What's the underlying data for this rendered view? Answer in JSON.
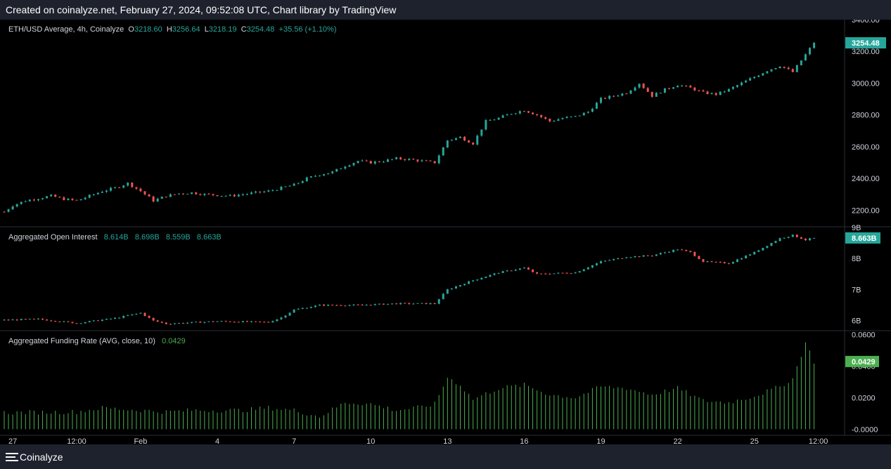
{
  "header": {
    "text": "Created on coinalyze.net, February 27, 2024, 09:52:08 UTC, Chart library by TradingView"
  },
  "footer": {
    "brand": "Coinalyze"
  },
  "colors": {
    "up": "#26a69a",
    "down": "#ef5350",
    "funding": "#4caf50",
    "background": "#000000",
    "text": "#d1d4dc"
  },
  "price_pane": {
    "label": "ETH/USD Average, 4h, Coinalyze",
    "o_label": "O",
    "o": "3218.60",
    "h_label": "H",
    "h": "3256.64",
    "l_label": "L",
    "l": "3218.19",
    "c_label": "C",
    "c": "3254.48",
    "change": "+35.56 (+1.10%)",
    "last_badge": "3254.48"
  },
  "oi_pane": {
    "label": "Aggregated Open Interest",
    "o": "8.614B",
    "h": "8.698B",
    "l": "8.559B",
    "c": "8.663B",
    "last_badge": "8.663B"
  },
  "funding_pane": {
    "label": "Aggregated Funding Rate (AVG, close, 10)",
    "value": "0.0429",
    "last_badge": "0.0429"
  },
  "chart_data": [
    {
      "type": "candlestick",
      "title": "ETH/USD Average, 4h, Coinalyze",
      "ylim": [
        2100,
        3400
      ],
      "y_ticks": [
        "2200.00",
        "2400.00",
        "2600.00",
        "2800.00",
        "3000.00",
        "3200.00",
        "3400.00"
      ],
      "y_tick_values": [
        2200,
        2400,
        2600,
        2800,
        3000,
        3200,
        3400
      ],
      "x_ticks": [
        "27",
        "12:00",
        "Feb",
        "4",
        "7",
        "10",
        "13",
        "16",
        "19",
        "22",
        "25",
        "12:00"
      ],
      "x_tick_dates": [
        "2024-01-27",
        "2024-01-29 12:00",
        "2024-02-01",
        "2024-02-04",
        "2024-02-07",
        "2024-02-10",
        "2024-02-13",
        "2024-02-16",
        "2024-02-19",
        "2024-02-22",
        "2024-02-25",
        "2024-02-27 12:00"
      ],
      "x_range": [
        "2024-01-26 16:00",
        "2024-02-28 12:00"
      ],
      "close_path": [
        [
          "2024-01-26 16:00",
          2190
        ],
        [
          "2024-01-27",
          2230
        ],
        [
          "2024-01-27 12:00",
          2260
        ],
        [
          "2024-01-28",
          2275
        ],
        [
          "2024-01-28 12:00",
          2290
        ],
        [
          "2024-01-29",
          2270
        ],
        [
          "2024-01-29 12:00",
          2260
        ],
        [
          "2024-01-30",
          2290
        ],
        [
          "2024-01-30 12:00",
          2320
        ],
        [
          "2024-01-31",
          2340
        ],
        [
          "2024-01-31 12:00",
          2370
        ],
        [
          "2024-02-01",
          2320
        ],
        [
          "2024-02-01 12:00",
          2260
        ],
        [
          "2024-02-02",
          2290
        ],
        [
          "2024-02-02 12:00",
          2305
        ],
        [
          "2024-02-03",
          2310
        ],
        [
          "2024-02-03 12:00",
          2300
        ],
        [
          "2024-02-04",
          2295
        ],
        [
          "2024-02-04 12:00",
          2290
        ],
        [
          "2024-02-05",
          2300
        ],
        [
          "2024-02-05 12:00",
          2310
        ],
        [
          "2024-02-06",
          2320
        ],
        [
          "2024-02-06 12:00",
          2340
        ],
        [
          "2024-02-07",
          2360
        ],
        [
          "2024-02-07 12:00",
          2400
        ],
        [
          "2024-02-08",
          2425
        ],
        [
          "2024-02-08 12:00",
          2440
        ],
        [
          "2024-02-09",
          2480
        ],
        [
          "2024-02-09 12:00",
          2510
        ],
        [
          "2024-02-10",
          2500
        ],
        [
          "2024-02-10 12:00",
          2510
        ],
        [
          "2024-02-11",
          2525
        ],
        [
          "2024-02-11 12:00",
          2520
        ],
        [
          "2024-02-12",
          2510
        ],
        [
          "2024-02-12 12:00",
          2500
        ],
        [
          "2024-02-13",
          2640
        ],
        [
          "2024-02-13 12:00",
          2660
        ],
        [
          "2024-02-14",
          2620
        ],
        [
          "2024-02-14 12:00",
          2760
        ],
        [
          "2024-02-15",
          2780
        ],
        [
          "2024-02-15 12:00",
          2810
        ],
        [
          "2024-02-16",
          2830
        ],
        [
          "2024-02-16 12:00",
          2800
        ],
        [
          "2024-02-17",
          2760
        ],
        [
          "2024-02-17 12:00",
          2780
        ],
        [
          "2024-02-18",
          2790
        ],
        [
          "2024-02-18 12:00",
          2820
        ],
        [
          "2024-02-19",
          2900
        ],
        [
          "2024-02-19 12:00",
          2920
        ],
        [
          "2024-02-20",
          2940
        ],
        [
          "2024-02-20 12:00",
          3000
        ],
        [
          "2024-02-21",
          2920
        ],
        [
          "2024-02-21 12:00",
          2960
        ],
        [
          "2024-02-22",
          2990
        ],
        [
          "2024-02-22 12:00",
          2970
        ],
        [
          "2024-02-23",
          2940
        ],
        [
          "2024-02-23 12:00",
          2930
        ],
        [
          "2024-02-24",
          2960
        ],
        [
          "2024-02-24 12:00",
          3000
        ],
        [
          "2024-02-25",
          3040
        ],
        [
          "2024-02-25 12:00",
          3080
        ],
        [
          "2024-02-26",
          3110
        ],
        [
          "2024-02-26 12:00",
          3070
        ],
        [
          "2024-02-27",
          3180
        ],
        [
          "2024-02-27 08:00",
          3254
        ]
      ]
    },
    {
      "type": "candlestick",
      "title": "Aggregated Open Interest",
      "ylim": [
        5.7,
        9.0
      ],
      "y_ticks": [
        "6B",
        "7B",
        "8B",
        "9B"
      ],
      "y_tick_values": [
        6,
        7,
        8,
        9
      ],
      "close_path": [
        [
          "2024-01-26 16:00",
          6.02
        ],
        [
          "2024-01-28",
          6.05
        ],
        [
          "2024-01-29 12:00",
          5.92
        ],
        [
          "2024-01-31",
          6.08
        ],
        [
          "2024-02-01",
          6.25
        ],
        [
          "2024-02-01 12:00",
          6.0
        ],
        [
          "2024-02-02",
          5.9
        ],
        [
          "2024-02-04",
          5.98
        ],
        [
          "2024-02-06",
          5.95
        ],
        [
          "2024-02-06 12:00",
          6.1
        ],
        [
          "2024-02-07",
          6.35
        ],
        [
          "2024-02-08",
          6.5
        ],
        [
          "2024-02-09 12:00",
          6.5
        ],
        [
          "2024-02-11",
          6.55
        ],
        [
          "2024-02-12 12:00",
          6.55
        ],
        [
          "2024-02-13",
          7.0
        ],
        [
          "2024-02-14",
          7.3
        ],
        [
          "2024-02-15",
          7.55
        ],
        [
          "2024-02-16",
          7.7
        ],
        [
          "2024-02-16 12:00",
          7.5
        ],
        [
          "2024-02-18",
          7.55
        ],
        [
          "2024-02-19",
          7.9
        ],
        [
          "2024-02-20",
          8.05
        ],
        [
          "2024-02-21",
          8.1
        ],
        [
          "2024-02-22",
          8.3
        ],
        [
          "2024-02-22 12:00",
          8.2
        ],
        [
          "2024-02-23",
          7.9
        ],
        [
          "2024-02-24",
          7.85
        ],
        [
          "2024-02-25",
          8.2
        ],
        [
          "2024-02-26",
          8.65
        ],
        [
          "2024-02-26 12:00",
          8.75
        ],
        [
          "2024-02-27",
          8.6
        ],
        [
          "2024-02-27 08:00",
          8.663
        ]
      ]
    },
    {
      "type": "bar",
      "title": "Aggregated Funding Rate (AVG, close, 10)",
      "ylim": [
        -0.003,
        0.062
      ],
      "y_ticks": [
        "-0.0000",
        "0.0200",
        "0.0400",
        "0.0600"
      ],
      "y_tick_values": [
        0,
        0.02,
        0.04,
        0.06
      ],
      "value_path": [
        [
          "2024-01-26 16:00",
          0.0105
        ],
        [
          "2024-01-29 12:00",
          0.011
        ],
        [
          "2024-01-30 12:00",
          0.0135
        ],
        [
          "2024-02-01",
          0.012
        ],
        [
          "2024-02-02",
          0.011
        ],
        [
          "2024-02-03",
          0.012
        ],
        [
          "2024-02-05",
          0.012
        ],
        [
          "2024-02-06",
          0.0135
        ],
        [
          "2024-02-07",
          0.012
        ],
        [
          "2024-02-08",
          0.008
        ],
        [
          "2024-02-09",
          0.017
        ],
        [
          "2024-02-10",
          0.016
        ],
        [
          "2024-02-11",
          0.012
        ],
        [
          "2024-02-12",
          0.014
        ],
        [
          "2024-02-12 12:00",
          0.016
        ],
        [
          "2024-02-13",
          0.033
        ],
        [
          "2024-02-13 12:00",
          0.028
        ],
        [
          "2024-02-14",
          0.019
        ],
        [
          "2024-02-15",
          0.026
        ],
        [
          "2024-02-16",
          0.028
        ],
        [
          "2024-02-17",
          0.022
        ],
        [
          "2024-02-18",
          0.02
        ],
        [
          "2024-02-19",
          0.027
        ],
        [
          "2024-02-20",
          0.026
        ],
        [
          "2024-02-21",
          0.022
        ],
        [
          "2024-02-22",
          0.026
        ],
        [
          "2024-02-23",
          0.018
        ],
        [
          "2024-02-24",
          0.017
        ],
        [
          "2024-02-25",
          0.021
        ],
        [
          "2024-02-26",
          0.027
        ],
        [
          "2024-02-26 12:00",
          0.032
        ],
        [
          "2024-02-27",
          0.055
        ],
        [
          "2024-02-27 08:00",
          0.0429
        ]
      ]
    }
  ]
}
